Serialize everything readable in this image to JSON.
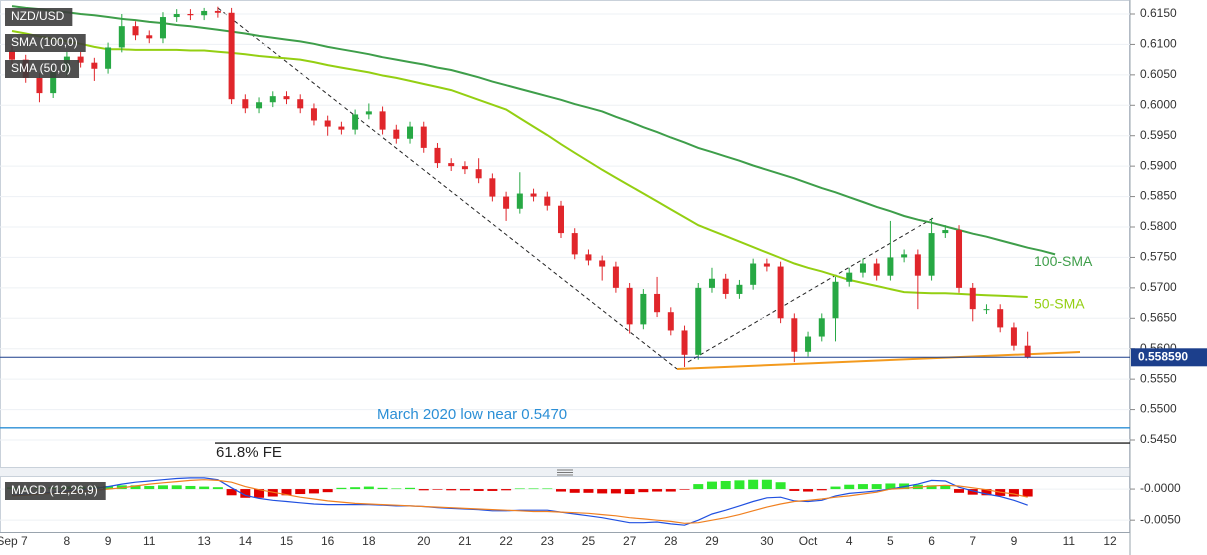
{
  "chart_data": [
    {
      "type": "candlestick",
      "title": "NZD/USD",
      "categories": [
        "Sep 7",
        null,
        null,
        null,
        "8",
        null,
        null,
        "9",
        null,
        null,
        "11",
        null,
        null,
        null,
        "13",
        null,
        null,
        "14",
        null,
        null,
        "15",
        null,
        null,
        "16",
        null,
        null,
        "18",
        null,
        null,
        null,
        "20",
        null,
        null,
        "21",
        null,
        null,
        "22",
        null,
        null,
        "23",
        null,
        null,
        "25",
        null,
        null,
        "27",
        null,
        null,
        "28",
        null,
        null,
        "29",
        null,
        null,
        null,
        "30",
        null,
        null,
        "Oct",
        null,
        null,
        "4",
        null,
        null,
        "5",
        null,
        null,
        "6",
        null,
        null,
        "7",
        null,
        null,
        "9",
        null,
        null,
        null,
        "11",
        null,
        null,
        "12"
      ],
      "open": [
        0.609,
        0.6075,
        0.6045,
        0.602,
        0.6055,
        0.608,
        0.607,
        0.606,
        0.6095,
        0.613,
        0.6115,
        0.611,
        0.6145,
        0.615,
        0.6148,
        0.6155,
        0.6152,
        0.601,
        0.5995,
        0.6005,
        0.6015,
        0.601,
        0.5995,
        0.5975,
        0.5965,
        0.596,
        0.5985,
        0.599,
        0.596,
        0.5945,
        0.5965,
        0.593,
        0.5905,
        0.59,
        0.5895,
        0.588,
        0.585,
        0.583,
        0.5855,
        0.585,
        0.5835,
        0.579,
        0.5755,
        0.5745,
        0.5735,
        0.57,
        0.564,
        0.569,
        0.566,
        0.563,
        0.559,
        0.57,
        0.5715,
        0.569,
        0.5705,
        0.574,
        0.5735,
        0.565,
        0.5595,
        0.562,
        0.565,
        0.571,
        0.5725,
        0.574,
        0.572,
        0.575,
        0.5755,
        0.572,
        0.579,
        0.5795,
        0.57,
        0.5665,
        0.5665,
        0.5635,
        0.5605,
        null,
        null,
        null,
        null,
        null,
        null
      ],
      "high": [
        0.6098,
        0.6083,
        0.6053,
        0.6063,
        0.6088,
        0.6088,
        0.6078,
        0.6103,
        0.615,
        0.6138,
        0.6123,
        0.6153,
        0.6158,
        0.6158,
        0.616,
        0.6162,
        0.616,
        0.6018,
        0.6013,
        0.6023,
        0.6023,
        0.6018,
        0.6003,
        0.5983,
        0.5973,
        0.5993,
        0.6003,
        0.5998,
        0.5968,
        0.5973,
        0.5973,
        0.5938,
        0.5913,
        0.5908,
        0.5913,
        0.5888,
        0.5858,
        0.589,
        0.5863,
        0.5858,
        0.5843,
        0.5798,
        0.5763,
        0.5753,
        0.5743,
        0.5708,
        0.5698,
        0.5718,
        0.5668,
        0.5638,
        0.5708,
        0.5733,
        0.5723,
        0.5713,
        0.5748,
        0.5748,
        0.5743,
        0.5658,
        0.5628,
        0.5658,
        0.5718,
        0.5733,
        0.5748,
        0.5748,
        0.581,
        0.5763,
        0.5763,
        0.5815,
        0.5803,
        0.5803,
        0.5708,
        0.5673,
        0.5673,
        0.5643,
        0.5628,
        null,
        null,
        null,
        null,
        null,
        null
      ],
      "low": [
        0.6067,
        0.6037,
        0.6005,
        0.6012,
        0.6047,
        0.6062,
        0.604,
        0.6052,
        0.6087,
        0.6107,
        0.6102,
        0.6102,
        0.6137,
        0.614,
        0.614,
        0.6144,
        0.6002,
        0.5987,
        0.5987,
        0.5997,
        0.6002,
        0.5987,
        0.5967,
        0.595,
        0.5952,
        0.5952,
        0.5977,
        0.5952,
        0.5937,
        0.5937,
        0.5922,
        0.5897,
        0.5892,
        0.5887,
        0.5872,
        0.5842,
        0.581,
        0.5822,
        0.5842,
        0.5827,
        0.5782,
        0.5747,
        0.5737,
        0.5712,
        0.5692,
        0.5625,
        0.5632,
        0.5652,
        0.5622,
        0.557,
        0.5582,
        0.5692,
        0.5682,
        0.5682,
        0.5697,
        0.5727,
        0.5642,
        0.5578,
        0.5587,
        0.5612,
        0.5612,
        0.5702,
        0.5717,
        0.5712,
        0.5712,
        0.5742,
        0.5665,
        0.5712,
        0.5782,
        0.5692,
        0.5645,
        0.5657,
        0.5627,
        0.5597,
        0.5584,
        null,
        null,
        null,
        null,
        null,
        null
      ],
      "close": [
        0.6075,
        0.6045,
        0.602,
        0.6055,
        0.608,
        0.607,
        0.606,
        0.6095,
        0.613,
        0.6115,
        0.611,
        0.6145,
        0.615,
        0.6148,
        0.6155,
        0.6152,
        0.601,
        0.5995,
        0.6005,
        0.6015,
        0.601,
        0.5995,
        0.5975,
        0.5965,
        0.596,
        0.5985,
        0.599,
        0.596,
        0.5945,
        0.5965,
        0.593,
        0.5905,
        0.59,
        0.5895,
        0.588,
        0.585,
        0.583,
        0.5855,
        0.585,
        0.5835,
        0.579,
        0.5755,
        0.5745,
        0.5735,
        0.57,
        0.564,
        0.569,
        0.566,
        0.563,
        0.559,
        0.57,
        0.5715,
        0.569,
        0.5705,
        0.574,
        0.5735,
        0.565,
        0.5595,
        0.562,
        0.565,
        0.571,
        0.5725,
        0.574,
        0.572,
        0.575,
        0.5755,
        0.572,
        0.579,
        0.5795,
        0.57,
        0.5665,
        0.5665,
        0.5635,
        0.5605,
        0.55859,
        null,
        null,
        null,
        null,
        null,
        null
      ],
      "up_color": "#27a844",
      "down_color": "#e0262b",
      "series": [
        {
          "name": "SMA (100,0)",
          "label": "100-SMA",
          "color": "#3e9e4a",
          "values": [
            0.6163,
            0.616,
            0.6158,
            0.6155,
            0.6153,
            0.615,
            0.6148,
            0.6145,
            0.6142,
            0.614,
            0.6137,
            0.6135,
            0.6132,
            0.613,
            0.6127,
            0.6124,
            0.6121,
            0.6118,
            0.6114,
            0.6111,
            0.6108,
            0.6105,
            0.6101,
            0.6096,
            0.6092,
            0.6088,
            0.6084,
            0.6079,
            0.6075,
            0.6071,
            0.6067,
            0.6062,
            0.6058,
            0.6052,
            0.6046,
            0.6039,
            0.6033,
            0.6027,
            0.6021,
            0.6015,
            0.6009,
            0.6002,
            0.5996,
            0.599,
            0.5981,
            0.5973,
            0.5964,
            0.5956,
            0.5947,
            0.5939,
            0.593,
            0.5923,
            0.5916,
            0.5909,
            0.5901,
            0.5894,
            0.5887,
            0.588,
            0.5872,
            0.5864,
            0.5857,
            0.5849,
            0.5841,
            0.5833,
            0.5826,
            0.5818,
            0.5812,
            0.5807,
            0.5801,
            0.5795,
            0.5789,
            0.5784,
            0.5778,
            0.5772,
            0.5766,
            0.5761,
            0.5755,
            null,
            null,
            null,
            null
          ]
        },
        {
          "name": "SMA (50,0)",
          "label": "50-SMA",
          "color": "#94cf12",
          "values": [
            0.6122,
            0.6118,
            0.6113,
            0.6109,
            0.6105,
            0.6101,
            0.6096,
            0.6092,
            0.6092,
            0.6091,
            0.6091,
            0.6091,
            0.6091,
            0.609,
            0.609,
            0.6088,
            0.6086,
            0.6084,
            0.6081,
            0.6079,
            0.6077,
            0.6075,
            0.6071,
            0.6066,
            0.6062,
            0.6058,
            0.6054,
            0.6049,
            0.6045,
            0.604,
            0.6035,
            0.603,
            0.6025,
            0.6017,
            0.6009,
            0.6001,
            0.5993,
            0.5979,
            0.5965,
            0.5951,
            0.5936,
            0.5922,
            0.5908,
            0.5894,
            0.5881,
            0.5868,
            0.5855,
            0.5842,
            0.5829,
            0.5816,
            0.5803,
            0.5794,
            0.5785,
            0.5776,
            0.5767,
            0.5758,
            0.5749,
            0.574,
            0.5733,
            0.5727,
            0.572,
            0.5713,
            0.5708,
            0.5703,
            0.5698,
            0.5693,
            0.5692,
            0.5691,
            0.5691,
            0.569,
            0.5689,
            0.5688,
            0.5687,
            0.5686,
            0.5685,
            null,
            null,
            null,
            null,
            null,
            null
          ]
        }
      ],
      "reference_lines": [
        {
          "value": 0.547,
          "label": "March 2020 low near 0.5470",
          "color": "#2b8fd6"
        },
        {
          "value": 0.5445,
          "label": "61.8% FE",
          "color": "#222222"
        }
      ],
      "last_price": 0.55859,
      "last_price_label": "0.558590",
      "last_price_color": "#1c3f8c",
      "ylim": [
        0.5404,
        0.6173
      ],
      "yticks": [
        {
          "value": 0.615,
          "label": "0.6150"
        },
        {
          "value": 0.61,
          "label": "0.6100"
        },
        {
          "value": 0.605,
          "label": "0.6050"
        },
        {
          "value": 0.6,
          "label": "0.6000"
        },
        {
          "value": 0.595,
          "label": "0.5950"
        },
        {
          "value": 0.59,
          "label": "0.5900"
        },
        {
          "value": 0.585,
          "label": "0.5850"
        },
        {
          "value": 0.58,
          "label": "0.5800"
        },
        {
          "value": 0.575,
          "label": "0.5750"
        },
        {
          "value": 0.57,
          "label": "0.5700"
        },
        {
          "value": 0.565,
          "label": "0.5650"
        },
        {
          "value": 0.56,
          "label": "0.5600"
        },
        {
          "value": 0.555,
          "label": "0.5550"
        },
        {
          "value": 0.55,
          "label": "0.5500"
        },
        {
          "value": 0.545,
          "label": "0.5450"
        }
      ],
      "grid": true
    },
    {
      "type": "macd",
      "title": "MACD (12,26,9)",
      "histogram": {
        "up_color": "#2ee82e",
        "down_color": "#e00000",
        "values": [
          0.0003,
          0.0002,
          0.0002,
          0.0003,
          0.0004,
          0.0004,
          0.0004,
          0.0005,
          0.0006,
          0.0006,
          0.0005,
          0.0006,
          0.0006,
          0.0005,
          0.0004,
          0.0003,
          -0.001,
          -0.0014,
          -0.0014,
          -0.0012,
          -0.001,
          -0.0008,
          -0.0007,
          -0.0005,
          0.0002,
          0.0003,
          0.0004,
          0.0002,
          0.0001,
          0.0002,
          -0.0002,
          -0.0001,
          -0.0002,
          -0.0002,
          -0.0003,
          -0.0003,
          -0.0002,
          0.0001,
          0.0001,
          0.0001,
          -0.0004,
          -0.0006,
          -0.0006,
          -0.0007,
          -0.0007,
          -0.0008,
          -0.0005,
          -0.0004,
          -0.0004,
          -0.0001,
          0.0008,
          0.0012,
          0.0013,
          0.0014,
          0.0015,
          0.0015,
          0.0011,
          -0.0003,
          -0.0004,
          -0.0002,
          0.0004,
          0.0007,
          0.0008,
          0.0008,
          0.0009,
          0.0009,
          0.0007,
          0.0006,
          0.0006,
          -0.0006,
          -0.0009,
          -0.001,
          -0.0011,
          -0.0012,
          -0.0012,
          null,
          null,
          null,
          null,
          null,
          null
        ]
      },
      "series": [
        {
          "color": "#2050e0",
          "values": [
            -0.001,
            -0.0008,
            -0.0007,
            -0.0005,
            -0.0003,
            -0.0001,
            0.0001,
            0.0004,
            0.0008,
            0.0011,
            0.0013,
            0.0015,
            0.0017,
            0.0018,
            0.0018,
            0.0015,
            0.0002,
            -0.001,
            -0.0015,
            -0.0018,
            -0.002,
            -0.0022,
            -0.0024,
            -0.0025,
            -0.0025,
            -0.0025,
            -0.0025,
            -0.0026,
            -0.0027,
            -0.0027,
            -0.0028,
            -0.003,
            -0.0031,
            -0.0032,
            -0.0033,
            -0.0035,
            -0.0035,
            -0.0034,
            -0.0034,
            -0.0034,
            -0.0037,
            -0.004,
            -0.0043,
            -0.0046,
            -0.005,
            -0.0054,
            -0.0054,
            -0.0053,
            -0.0056,
            -0.0058,
            -0.005,
            -0.004,
            -0.0034,
            -0.0027,
            -0.002,
            -0.0014,
            -0.0013,
            -0.0019,
            -0.002,
            -0.0018,
            -0.0011,
            -0.0007,
            -0.0005,
            -0.0003,
            0,
            0.0004,
            0.0008,
            0.0014,
            0.0013,
            0.0003,
            -0.0003,
            -0.0008,
            -0.0012,
            -0.0018,
            -0.0026,
            null,
            null,
            null,
            null,
            null,
            null
          ]
        },
        {
          "color": "#f08020",
          "values": [
            -0.0011,
            -0.001,
            -0.0008,
            -0.0007,
            -0.0005,
            -0.0004,
            -0.0002,
            0,
            0.0002,
            0.0005,
            0.0008,
            0.001,
            0.0012,
            0.0014,
            0.0015,
            0.0014,
            0.0011,
            0.0004,
            -0.0001,
            -0.0005,
            -0.0009,
            -0.0013,
            -0.0016,
            -0.0019,
            -0.0021,
            -0.0023,
            -0.0024,
            -0.0025,
            -0.0026,
            -0.0027,
            -0.0028,
            -0.0029,
            -0.003,
            -0.0031,
            -0.0032,
            -0.0033,
            -0.0034,
            -0.0035,
            -0.0036,
            -0.0036,
            -0.0037,
            -0.0038,
            -0.0039,
            -0.0041,
            -0.0043,
            -0.0046,
            -0.0048,
            -0.005,
            -0.0052,
            -0.0055,
            -0.0054,
            -0.005,
            -0.0046,
            -0.0041,
            -0.0035,
            -0.0029,
            -0.0024,
            -0.002,
            -0.0018,
            -0.0016,
            -0.0013,
            -0.0011,
            -0.0008,
            -0.0005,
            0,
            0.0001,
            0.0003,
            0.0005,
            0.0006,
            0.0005,
            0.0002,
            -0.0001,
            -0.0005,
            -0.0008,
            -0.0013,
            null,
            null,
            null,
            null,
            null,
            null
          ]
        }
      ],
      "ylim": [
        -0.0069,
        0.0021
      ],
      "yticks": [
        {
          "value": 0,
          "label": "-0.0000"
        },
        {
          "value": -0.005,
          "label": "-0.0050"
        }
      ],
      "grid": true
    }
  ]
}
